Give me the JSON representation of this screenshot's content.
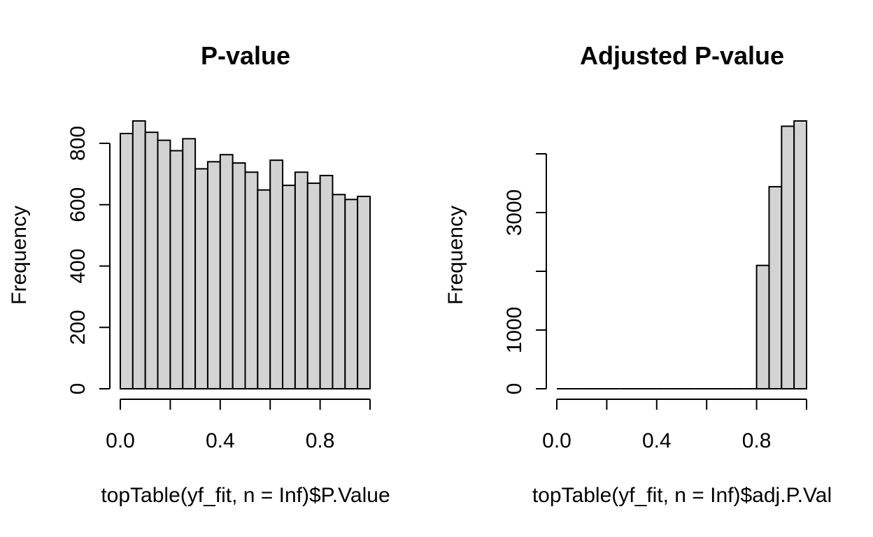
{
  "chart_data": [
    {
      "type": "bar",
      "title": "P-value",
      "xlabel": "topTable(yf_fit, n = Inf)$P.Value",
      "ylabel": "Frequency",
      "bin_width": 0.05,
      "xlim": [
        0,
        1
      ],
      "ylim": [
        0,
        880
      ],
      "xticks": [
        0,
        0.2,
        0.4,
        0.6,
        0.8,
        1
      ],
      "xtick_labels": [
        "0.0",
        "",
        "0.4",
        "",
        "0.8",
        ""
      ],
      "yticks": [
        0,
        200,
        400,
        600,
        800
      ],
      "ytick_labels": [
        "0",
        "200",
        "400",
        "600",
        "800"
      ],
      "bins": [
        {
          "x0": 0.0,
          "x1": 0.05,
          "value": 832
        },
        {
          "x0": 0.05,
          "x1": 0.1,
          "value": 873
        },
        {
          "x0": 0.1,
          "x1": 0.15,
          "value": 836
        },
        {
          "x0": 0.15,
          "x1": 0.2,
          "value": 810
        },
        {
          "x0": 0.2,
          "x1": 0.25,
          "value": 776
        },
        {
          "x0": 0.25,
          "x1": 0.3,
          "value": 815
        },
        {
          "x0": 0.3,
          "x1": 0.35,
          "value": 717
        },
        {
          "x0": 0.35,
          "x1": 0.4,
          "value": 740
        },
        {
          "x0": 0.4,
          "x1": 0.45,
          "value": 763
        },
        {
          "x0": 0.45,
          "x1": 0.5,
          "value": 736
        },
        {
          "x0": 0.5,
          "x1": 0.55,
          "value": 706
        },
        {
          "x0": 0.55,
          "x1": 0.6,
          "value": 648
        },
        {
          "x0": 0.6,
          "x1": 0.65,
          "value": 745
        },
        {
          "x0": 0.65,
          "x1": 0.7,
          "value": 663
        },
        {
          "x0": 0.7,
          "x1": 0.75,
          "value": 706
        },
        {
          "x0": 0.75,
          "x1": 0.8,
          "value": 670
        },
        {
          "x0": 0.8,
          "x1": 0.85,
          "value": 695
        },
        {
          "x0": 0.85,
          "x1": 0.9,
          "value": 633
        },
        {
          "x0": 0.9,
          "x1": 0.95,
          "value": 617
        },
        {
          "x0": 0.95,
          "x1": 1.0,
          "value": 627
        }
      ],
      "bar_fill": "#d3d3d3",
      "bar_stroke": "#000000"
    },
    {
      "type": "bar",
      "title": "Adjusted P-value",
      "xlabel": "topTable(yf_fit, n = Inf)$adj.P.Val",
      "ylabel": "Frequency",
      "bin_width": 0.05,
      "xlim": [
        0,
        1
      ],
      "ylim": [
        0,
        4600
      ],
      "xticks": [
        0,
        0.2,
        0.4,
        0.6,
        0.8,
        1
      ],
      "xtick_labels": [
        "0.0",
        "",
        "0.4",
        "",
        "0.8",
        ""
      ],
      "yticks": [
        0,
        1000,
        2000,
        3000,
        4000
      ],
      "ytick_labels": [
        "0",
        "1000",
        "",
        "3000",
        ""
      ],
      "bins": [
        {
          "x0": 0.0,
          "x1": 0.05,
          "value": 0
        },
        {
          "x0": 0.05,
          "x1": 0.1,
          "value": 0
        },
        {
          "x0": 0.1,
          "x1": 0.15,
          "value": 0
        },
        {
          "x0": 0.15,
          "x1": 0.2,
          "value": 0
        },
        {
          "x0": 0.2,
          "x1": 0.25,
          "value": 0
        },
        {
          "x0": 0.25,
          "x1": 0.3,
          "value": 0
        },
        {
          "x0": 0.3,
          "x1": 0.35,
          "value": 0
        },
        {
          "x0": 0.35,
          "x1": 0.4,
          "value": 0
        },
        {
          "x0": 0.4,
          "x1": 0.45,
          "value": 0
        },
        {
          "x0": 0.45,
          "x1": 0.5,
          "value": 0
        },
        {
          "x0": 0.5,
          "x1": 0.55,
          "value": 0
        },
        {
          "x0": 0.55,
          "x1": 0.6,
          "value": 0
        },
        {
          "x0": 0.6,
          "x1": 0.65,
          "value": 0
        },
        {
          "x0": 0.65,
          "x1": 0.7,
          "value": 0
        },
        {
          "x0": 0.7,
          "x1": 0.75,
          "value": 0
        },
        {
          "x0": 0.75,
          "x1": 0.8,
          "value": 0
        },
        {
          "x0": 0.8,
          "x1": 0.85,
          "value": 2100
        },
        {
          "x0": 0.85,
          "x1": 0.9,
          "value": 3440
        },
        {
          "x0": 0.9,
          "x1": 0.95,
          "value": 4470
        },
        {
          "x0": 0.95,
          "x1": 1.0,
          "value": 4560
        }
      ],
      "bar_fill": "#d3d3d3",
      "bar_stroke": "#000000"
    }
  ]
}
